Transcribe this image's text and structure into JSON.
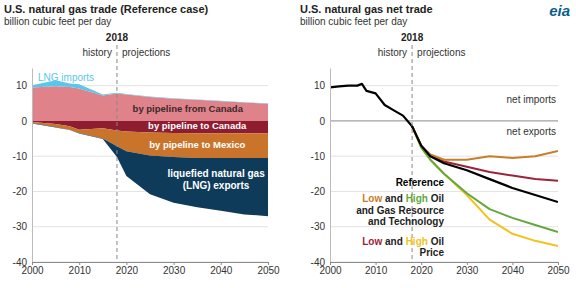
{
  "chart_data": [
    {
      "type": "area",
      "stacked": true,
      "grid": true,
      "title": "U.S. natural gas trade (Reference case)",
      "subtitle": "billion cubic feet per day",
      "x": [
        2000,
        2005,
        2008,
        2010,
        2015,
        2018,
        2020,
        2025,
        2030,
        2035,
        2040,
        2045,
        2050
      ],
      "xlim": [
        2000,
        2050
      ],
      "xticks": [
        2000,
        2010,
        2020,
        2030,
        2040,
        2050
      ],
      "ylim": [
        -40,
        15
      ],
      "yticks": [
        10,
        0,
        -10,
        -20,
        -30,
        -40
      ],
      "series": [
        {
          "name": "by pipeline from Canada",
          "color": "#e0828a",
          "values": [
            9.5,
            9.8,
            9.6,
            9.2,
            7.2,
            7.8,
            7.5,
            6.8,
            6.3,
            6.0,
            5.6,
            5.2,
            4.9
          ]
        },
        {
          "name": "LNG imports",
          "color": "#5cc6ea",
          "values": [
            0.6,
            1.7,
            1.0,
            1.2,
            0.3,
            0.2,
            0.1,
            0.1,
            0.1,
            0.1,
            0.1,
            0.1,
            0.1
          ]
        },
        {
          "name": "by pipeline to Canada",
          "color": "#8e1d31",
          "values": [
            -0.3,
            -0.9,
            -1.5,
            -2.5,
            -2.1,
            -2.7,
            -3.0,
            -3.3,
            -3.4,
            -3.5,
            -3.5,
            -3.5,
            -3.5
          ]
        },
        {
          "name": "by pipeline to Mexico",
          "color": "#c9742a",
          "values": [
            -0.3,
            -0.8,
            -1.0,
            -0.9,
            -2.9,
            -4.5,
            -5.6,
            -6.5,
            -6.8,
            -7.0,
            -7.0,
            -7.0,
            -7.0
          ]
        },
        {
          "name": "liquefied natural gas (LNG) exports",
          "color": "#0f3b5a",
          "values": [
            -0.1,
            -0.2,
            -0.1,
            -0.2,
            -0.1,
            -3.0,
            -7.0,
            -11.0,
            -13.0,
            -14.0,
            -15.0,
            -16.0,
            -16.5
          ]
        }
      ],
      "annotations": [
        {
          "text": "2018",
          "x": 2018
        },
        {
          "text": "history"
        },
        {
          "text": "projections"
        }
      ]
    },
    {
      "type": "line",
      "grid": true,
      "title": "U.S. natural gas net trade",
      "subtitle": "billion cubic feet per day",
      "x": [
        2000,
        2002,
        2004,
        2006,
        2007,
        2008,
        2010,
        2012,
        2014,
        2016,
        2018,
        2020,
        2022,
        2025,
        2030,
        2035,
        2040,
        2045,
        2050
      ],
      "xlim": [
        2000,
        2050
      ],
      "xticks": [
        2000,
        2010,
        2020,
        2030,
        2040,
        2050
      ],
      "ylim": [
        -40,
        15
      ],
      "yticks": [
        10,
        0,
        -10,
        -20,
        -30,
        -40
      ],
      "series": [
        {
          "name": "Reference",
          "color": "#000000",
          "values": [
            9.5,
            9.8,
            10,
            10,
            10.5,
            8.5,
            7.8,
            4.5,
            3,
            1.5,
            -1.5,
            -7,
            -10,
            -12,
            -14,
            -16.5,
            -19,
            -21,
            -23
          ]
        },
        {
          "name": "Low",
          "color": "#c87d2a",
          "values": [
            null,
            null,
            null,
            null,
            null,
            null,
            null,
            null,
            null,
            null,
            -1.5,
            -7,
            -9.5,
            -11,
            -11,
            -10,
            -10.5,
            -10,
            -8.5
          ]
        },
        {
          "name": "High",
          "color": "#62a83e",
          "values": [
            null,
            null,
            null,
            null,
            null,
            null,
            null,
            null,
            null,
            null,
            -1.5,
            -7.5,
            -11,
            -15,
            -20.5,
            -25,
            -27.5,
            -29.5,
            -31.5
          ]
        },
        {
          "name": "Low",
          "color": "#9e2238",
          "values": [
            null,
            null,
            null,
            null,
            null,
            null,
            null,
            null,
            null,
            null,
            -1.5,
            -7,
            -10,
            -11.5,
            -13,
            -14.5,
            -15.5,
            -16.5,
            -17
          ]
        },
        {
          "name": "High",
          "color": "#f2c21e",
          "values": [
            null,
            null,
            null,
            null,
            null,
            null,
            null,
            null,
            null,
            null,
            -1.5,
            -7.5,
            -11,
            -15,
            -21,
            -28,
            -32,
            -34,
            -35.5
          ]
        }
      ],
      "annotations": [
        {
          "text": "2018",
          "x": 2018
        },
        {
          "text": "history"
        },
        {
          "text": "projections"
        },
        {
          "text": "net imports"
        },
        {
          "text": "net exports"
        },
        {
          "text": "and"
        },
        {
          "text": "Oil"
        },
        {
          "text": "and Gas Resource"
        },
        {
          "text": "and Technology"
        },
        {
          "text": "Price"
        }
      ]
    }
  ],
  "logo": "eia"
}
